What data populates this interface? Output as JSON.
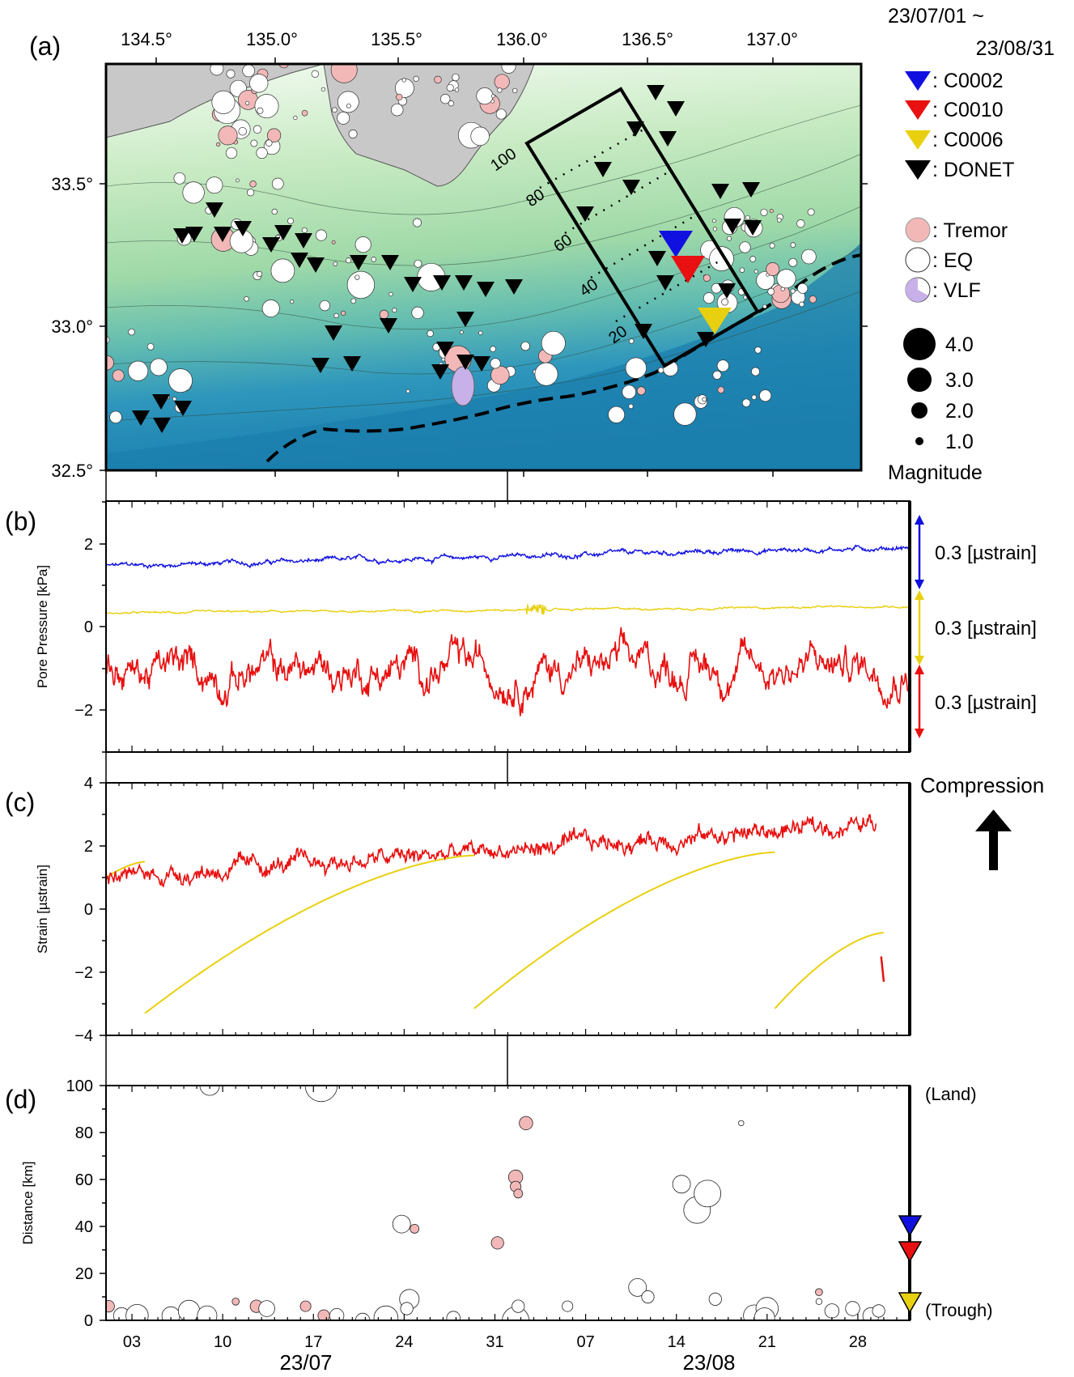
{
  "date_range": {
    "line1": "23/07/01 ~",
    "line2": "23/08/31"
  },
  "panels": {
    "a": "(a)",
    "b": "(b)",
    "c": "(c)",
    "d": "(d)"
  },
  "colors": {
    "c0002": "#1010e0",
    "c0010": "#e81010",
    "c0006": "#e8d010",
    "donet": "#000000",
    "tremor": "#f2b8b8",
    "eq": "#ffffff",
    "vlf": "#c8b0e8",
    "land": "#c8c8c8"
  },
  "map": {
    "lon_ticks": [
      "134.5°",
      "135.0°",
      "135.5°",
      "136.0°",
      "136.5°",
      "137.0°"
    ],
    "lat_ticks": [
      "33.5°",
      "33.0°",
      "32.5°"
    ],
    "profile_ticks": [
      "100",
      "80",
      "60",
      "40",
      "20"
    ],
    "legend": {
      "stations": [
        {
          "label": ": C0002",
          "color": "#1010e0"
        },
        {
          "label": ": C0010",
          "color": "#e81010"
        },
        {
          "label": ": C0006",
          "color": "#e8d010"
        },
        {
          "label": ": DONET",
          "color": "#000000"
        }
      ],
      "events": [
        {
          "label": ": Tremor",
          "color": "#f2b8b8",
          "text_color": "#f2b8b8"
        },
        {
          "label": ": EQ",
          "color": "#ffffff",
          "text_color": "#000000"
        },
        {
          "label": ": VLF",
          "color": "#c8b0e8",
          "text_color": "#000000"
        }
      ],
      "magnitudes": [
        "4.0",
        "3.0",
        "2.0",
        "1.0"
      ],
      "magnitude_title": "Magnitude"
    }
  },
  "chart_data": [
    {
      "type": "line",
      "panel": "b",
      "ylabel": "Pore Pressure [kPa]",
      "ylim": [
        -3,
        3
      ],
      "yticks": [
        "2",
        "0",
        "−2"
      ],
      "series": [
        {
          "color": "#1010e0",
          "start": 1.45,
          "end": 1.9,
          "noise": 0.05,
          "label": "0.3 [µstrain]"
        },
        {
          "color": "#e8d010",
          "start": 0.32,
          "end": 0.48,
          "noise": 0.02,
          "label": "0.3 [µstrain]"
        },
        {
          "color": "#e81010",
          "start": -1.1,
          "end": -0.9,
          "noise": 0.3,
          "label": "0.3 [µstrain]"
        }
      ]
    },
    {
      "type": "line",
      "panel": "c",
      "ylabel": "Strain [µstrain]",
      "ylim": [
        -4,
        4
      ],
      "yticks": [
        "4",
        "2",
        "0",
        "−2",
        "−4"
      ],
      "annotation": "Compression",
      "red_series": {
        "color": "#e81010",
        "x": [
          0,
          30,
          58,
          60
        ],
        "y": [
          1.0,
          2.0,
          2.6,
          2.9
        ],
        "noise": 0.25
      },
      "yellow_segments": [
        {
          "x0": 0,
          "x1": 1.5,
          "y0": 1.0,
          "y1": 1.5
        },
        {
          "x0": 1.5,
          "x1": 14.2,
          "y0": -3.3,
          "y1": 1.7
        },
        {
          "x0": 14.2,
          "x1": 25.8,
          "y0": -3.15,
          "y1": 1.8
        },
        {
          "x0": 25.8,
          "x1": 30,
          "y0": -3.15,
          "y1": -0.75
        }
      ],
      "red_tail": {
        "x": [
          29.9,
          30.0
        ],
        "y": [
          -1.5,
          -2.3
        ]
      }
    },
    {
      "type": "scatter",
      "panel": "d",
      "ylabel": "Distance [km]",
      "ylim": [
        0,
        100
      ],
      "yticks": [
        "100",
        "80",
        "60",
        "40",
        "20",
        "0"
      ],
      "right_labels": {
        "top": "(Land)",
        "bottom": "(Trough)"
      },
      "station_distances": [
        {
          "name": "C0002",
          "km": 40
        },
        {
          "name": "C0010",
          "km": 29
        },
        {
          "name": "C0006",
          "km": 6
        }
      ],
      "events": [
        {
          "t": 4.0,
          "d": 100,
          "m": 2.2,
          "k": "eq"
        },
        {
          "t": 8.3,
          "d": 100,
          "m": 3.6,
          "k": "eq"
        },
        {
          "t": 16.2,
          "d": 84,
          "m": 1.5,
          "k": "tr"
        },
        {
          "t": 15.8,
          "d": 61,
          "m": 1.6,
          "k": "tr"
        },
        {
          "t": 15.8,
          "d": 57,
          "m": 1.2,
          "k": "tr"
        },
        {
          "t": 15.9,
          "d": 54,
          "m": 1.0,
          "k": "tr"
        },
        {
          "t": 11.4,
          "d": 41,
          "m": 2.0,
          "k": "eq"
        },
        {
          "t": 11.9,
          "d": 39,
          "m": 1.0,
          "k": "tr"
        },
        {
          "t": 15.1,
          "d": 33,
          "m": 1.4,
          "k": "tr"
        },
        {
          "t": 22.2,
          "d": 58,
          "m": 2.0,
          "k": "eq"
        },
        {
          "t": 22.8,
          "d": 47,
          "m": 3.0,
          "k": "eq"
        },
        {
          "t": 23.2,
          "d": 54,
          "m": 3.0,
          "k": "eq"
        },
        {
          "t": 24.5,
          "d": 84,
          "m": 0.6,
          "k": "eq"
        },
        {
          "t": 0.1,
          "d": 6,
          "m": 1.3,
          "k": "tr"
        },
        {
          "t": 0.6,
          "d": 2,
          "m": 1.8,
          "k": "eq"
        },
        {
          "t": 1.2,
          "d": 2,
          "m": 2.5,
          "k": "eq"
        },
        {
          "t": 2.5,
          "d": 2,
          "m": 2.0,
          "k": "eq"
        },
        {
          "t": 3.2,
          "d": 4,
          "m": 2.4,
          "k": "eq"
        },
        {
          "t": 3.9,
          "d": 2,
          "m": 2.2,
          "k": "eq"
        },
        {
          "t": 5.0,
          "d": 8,
          "m": 0.8,
          "k": "tr"
        },
        {
          "t": 5.8,
          "d": 6,
          "m": 1.4,
          "k": "tr"
        },
        {
          "t": 6.2,
          "d": 5,
          "m": 1.8,
          "k": "eq"
        },
        {
          "t": 7.7,
          "d": 6,
          "m": 1.2,
          "k": "tr"
        },
        {
          "t": 8.4,
          "d": 2,
          "m": 1.3,
          "k": "tr"
        },
        {
          "t": 8.9,
          "d": 2,
          "m": 1.6,
          "k": "eq"
        },
        {
          "t": 10.8,
          "d": 1,
          "m": 2.7,
          "k": "eq"
        },
        {
          "t": 11.7,
          "d": 9,
          "m": 2.2,
          "k": "eq"
        },
        {
          "t": 11.6,
          "d": 5,
          "m": 1.4,
          "k": "eq"
        },
        {
          "t": 13.4,
          "d": 1,
          "m": 1.5,
          "k": "eq"
        },
        {
          "t": 15.8,
          "d": 0,
          "m": 3.0,
          "k": "eq"
        },
        {
          "t": 15.9,
          "d": 6,
          "m": 1.4,
          "k": "eq"
        },
        {
          "t": 17.8,
          "d": 6,
          "m": 1.2,
          "k": "eq"
        },
        {
          "t": 20.5,
          "d": 14,
          "m": 2.0,
          "k": "eq"
        },
        {
          "t": 20.9,
          "d": 10,
          "m": 1.4,
          "k": "eq"
        },
        {
          "t": 23.5,
          "d": 9,
          "m": 1.4,
          "k": "eq"
        },
        {
          "t": 25.0,
          "d": 2,
          "m": 2.4,
          "k": "eq"
        },
        {
          "t": 25.5,
          "d": 5,
          "m": 2.5,
          "k": "eq"
        },
        {
          "t": 25.4,
          "d": 1,
          "m": 2.3,
          "k": "eq"
        },
        {
          "t": 27.5,
          "d": 12,
          "m": 0.8,
          "k": "tr"
        },
        {
          "t": 27.5,
          "d": 8,
          "m": 0.7,
          "k": "eq"
        },
        {
          "t": 28.0,
          "d": 4,
          "m": 1.6,
          "k": "eq"
        },
        {
          "t": 28.8,
          "d": 5,
          "m": 1.6,
          "k": "eq"
        },
        {
          "t": 29.5,
          "d": 2,
          "m": 1.8,
          "k": "eq"
        },
        {
          "t": 29.8,
          "d": 4,
          "m": 1.4,
          "k": "eq"
        },
        {
          "t": 9.9,
          "d": 0,
          "m": 1.6,
          "k": "eq"
        }
      ]
    }
  ],
  "time_axis": {
    "day_ticks": [
      "03",
      "10",
      "17",
      "24",
      "31",
      "07",
      "14",
      "21",
      "28"
    ],
    "month_labels": [
      "23/07",
      "23/08"
    ]
  }
}
